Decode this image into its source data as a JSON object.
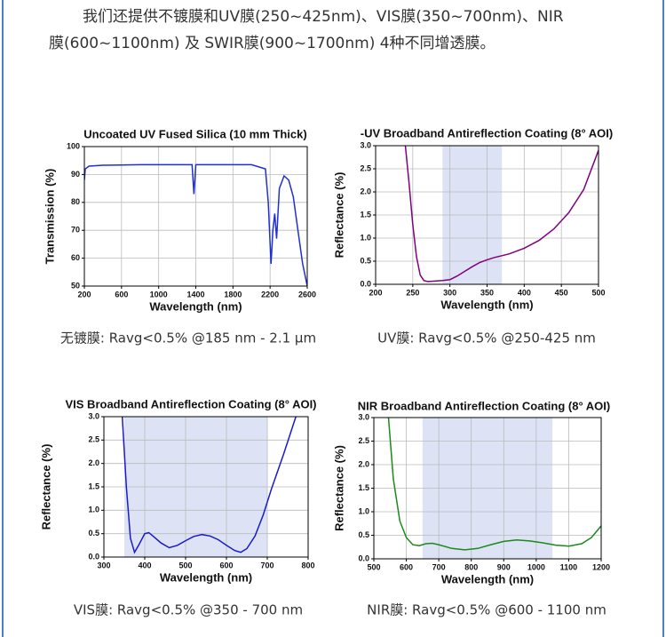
{
  "intro": [
    "我们还提供不镀膜和UV膜(250~425nm)、VIS膜(350~700nm)、NIR",
    "膜(600~1100nm) 及 SWIR膜(900~1700nm) 4种不同增透膜。"
  ],
  "chart_data": [
    {
      "type": "line",
      "title": "Uncoated UV Fused Silica (10 mm Thick)",
      "x_label": "Wavelength (nm)",
      "y_label": "Transmission (%)",
      "caption": "无镀膜: Ravg<0.5% @185 nm - 2.1 µm",
      "x": [
        200,
        210,
        250,
        400,
        800,
        1360,
        1380,
        1400,
        2000,
        2150,
        2180,
        2210,
        2230,
        2250,
        2270,
        2300,
        2350,
        2400,
        2450,
        2500,
        2550,
        2600
      ],
      "values": [
        88,
        92,
        93,
        93.3,
        93.5,
        93.5,
        83,
        93.5,
        93.5,
        92,
        80,
        58,
        70,
        76,
        67,
        85,
        89.5,
        88,
        82,
        70,
        58,
        50
      ],
      "color": "#1f2fd0",
      "xlim": [
        200,
        2600
      ],
      "xticks": [
        200,
        600,
        1000,
        1400,
        1800,
        2200,
        2600
      ],
      "ylim": [
        50,
        100
      ],
      "yticks": [
        50,
        60,
        70,
        80,
        90,
        100
      ],
      "grid": true
    },
    {
      "type": "line",
      "title": "-UV Broadband Antireflection Coating (8° AOI)",
      "x_label": "Wavelength (nm)",
      "y_label": "Reflectance (%)",
      "caption": "UV膜: Ravg<0.5% @250-425 nm",
      "x": [
        240,
        245,
        250,
        255,
        260,
        265,
        270,
        280,
        290,
        300,
        310,
        320,
        330,
        340,
        350,
        360,
        370,
        380,
        400,
        420,
        440,
        460,
        480,
        500
      ],
      "values": [
        3.0,
        2.2,
        1.3,
        0.6,
        0.2,
        0.08,
        0.06,
        0.07,
        0.08,
        0.1,
        0.18,
        0.28,
        0.38,
        0.47,
        0.53,
        0.58,
        0.62,
        0.66,
        0.78,
        0.95,
        1.2,
        1.55,
        2.05,
        2.9
      ],
      "color": "#800080",
      "band": [
        290,
        370
      ],
      "band_color": "#dde3f5",
      "xlim": [
        200,
        500
      ],
      "xticks": [
        200,
        250,
        300,
        350,
        400,
        450,
        500
      ],
      "ylim": [
        0,
        3
      ],
      "yticks": [
        {
          "value": 0,
          "label": "0.0"
        },
        0.5,
        {
          "value": 1,
          "label": "1.0"
        },
        1.5,
        {
          "value": 2,
          "label": "2.0"
        },
        2.5,
        {
          "value": 3,
          "label": "3.0"
        }
      ],
      "grid": true
    },
    {
      "type": "line",
      "title": "VIS Broadband Antireflection Coating (8° AOI)",
      "x_label": "Wavelength (nm)",
      "y_label": "Reflectance (%)",
      "caption": "VIS膜: Ravg<0.5% @350 - 700 nm",
      "x": [
        345,
        355,
        365,
        375,
        385,
        400,
        410,
        420,
        440,
        460,
        480,
        500,
        520,
        540,
        560,
        580,
        600,
        620,
        635,
        650,
        670,
        690,
        710,
        740,
        770
      ],
      "values": [
        3.0,
        1.5,
        0.4,
        0.1,
        0.25,
        0.5,
        0.52,
        0.45,
        0.3,
        0.2,
        0.25,
        0.35,
        0.44,
        0.48,
        0.45,
        0.37,
        0.25,
        0.14,
        0.1,
        0.18,
        0.45,
        0.9,
        1.45,
        2.2,
        3.0
      ],
      "color": "#1a1acc",
      "band": [
        350,
        700
      ],
      "band_color": "#dde3f5",
      "xlim": [
        300,
        800
      ],
      "xticks": [
        300,
        400,
        500,
        600,
        700,
        800
      ],
      "ylim": [
        0,
        3
      ],
      "yticks": [
        {
          "value": 0,
          "label": "0.0"
        },
        0.5,
        {
          "value": 1,
          "label": "1.0"
        },
        1.5,
        {
          "value": 2,
          "label": "2.0"
        },
        2.5,
        {
          "value": 3,
          "label": "3.0"
        }
      ],
      "grid": true
    },
    {
      "type": "line",
      "title": "NIR Broadband Antireflection Coating (8° AOI)",
      "x_label": "Wavelength (nm)",
      "y_label": "Reflectance (%)",
      "caption": "NIR膜: Ravg<0.5% @600 - 1100 nm",
      "x": [
        545,
        560,
        580,
        600,
        620,
        640,
        660,
        680,
        700,
        740,
        780,
        820,
        860,
        900,
        940,
        980,
        1020,
        1060,
        1100,
        1140,
        1170,
        1200
      ],
      "values": [
        3.0,
        1.7,
        0.8,
        0.45,
        0.3,
        0.28,
        0.32,
        0.33,
        0.3,
        0.22,
        0.19,
        0.22,
        0.3,
        0.37,
        0.4,
        0.38,
        0.34,
        0.29,
        0.27,
        0.32,
        0.45,
        0.7
      ],
      "color": "#1a8a1a",
      "band": [
        650,
        1050
      ],
      "band_color": "#dde3f5",
      "xlim": [
        500,
        1200
      ],
      "xticks": [
        500,
        600,
        700,
        800,
        900,
        1000,
        1100,
        1200
      ],
      "ylim": [
        0,
        3
      ],
      "yticks": [
        {
          "value": 0,
          "label": "0.0"
        },
        0.5,
        {
          "value": 1,
          "label": "1.0"
        },
        1.5,
        {
          "value": 2,
          "label": "2.0"
        },
        2.5,
        {
          "value": 3,
          "label": "3.0"
        }
      ],
      "grid": true
    }
  ]
}
